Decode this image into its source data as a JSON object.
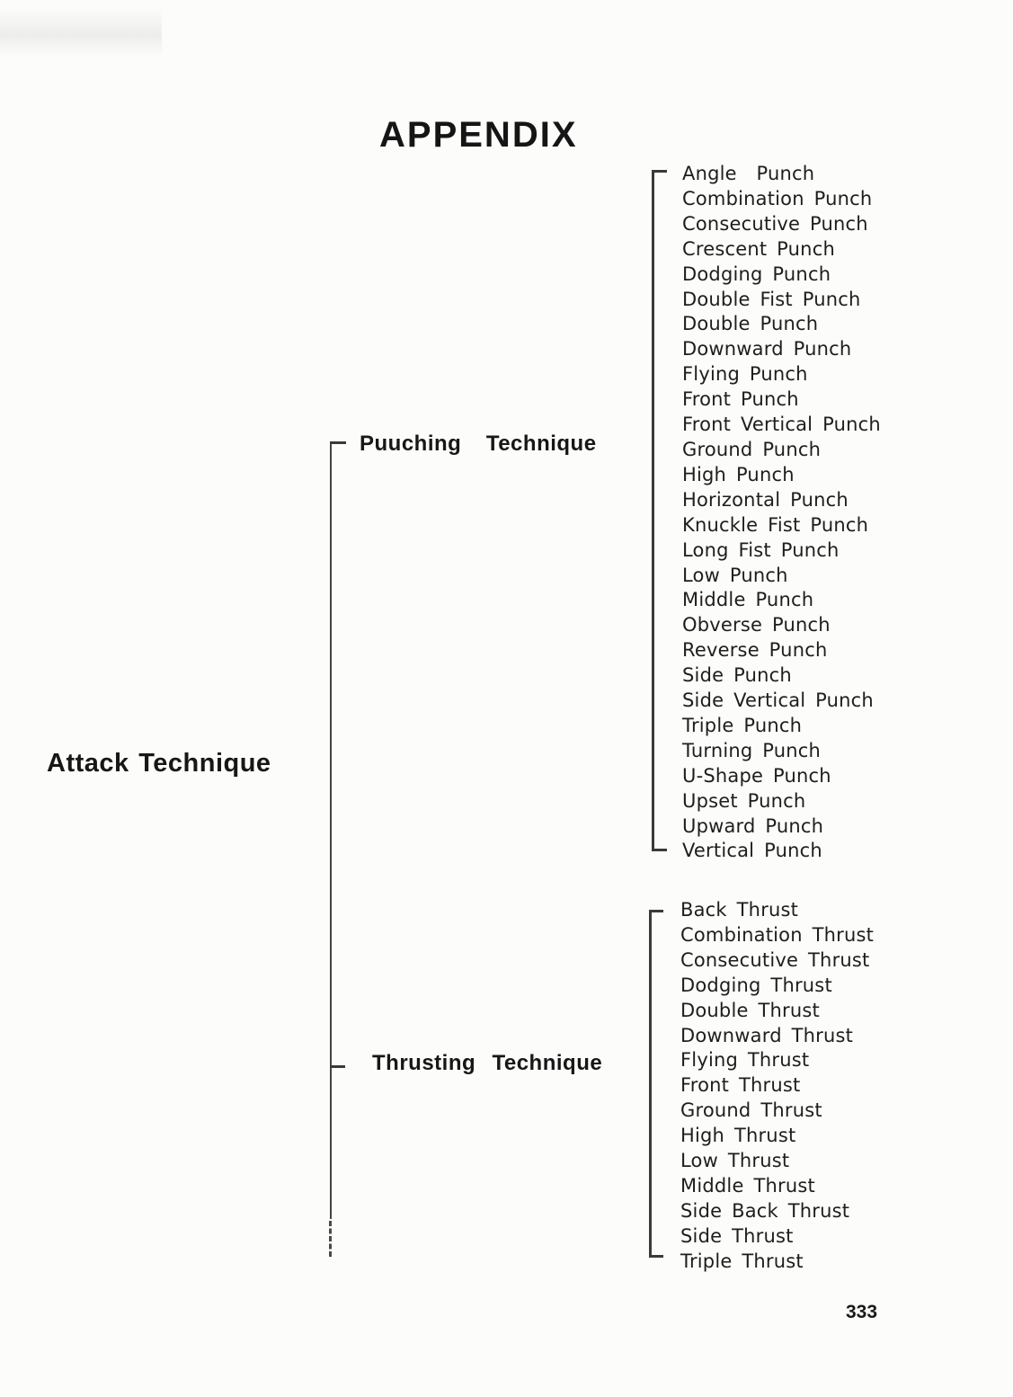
{
  "page": {
    "title": "APPENDIX",
    "page_number": "333"
  },
  "tree": {
    "root": {
      "label": "Attack Technique"
    },
    "branches": [
      {
        "label": "Puuching   Technique",
        "items": [
          "Angle  Punch",
          "Combination Punch",
          "Consecutive Punch",
          "Crescent Punch",
          "Dodging Punch",
          "Double Fist Punch",
          "Double Punch",
          "Downward Punch",
          "Flying Punch",
          "Front Punch",
          "Front Vertical Punch",
          "Ground Punch",
          "High Punch",
          "Horizontal Punch",
          "Knuckle Fist Punch",
          "Long Fist Punch",
          "Low Punch",
          "Middle Punch",
          "Obverse Punch",
          "Reverse Punch",
          "Side Punch",
          "Side Vertical Punch",
          "Triple Punch",
          "Turning Punch",
          "U-Shape Punch",
          "Upset Punch",
          "Upward Punch",
          "Vertical Punch"
        ]
      },
      {
        "label": "Thrusting  Technique",
        "items": [
          "Back Thrust",
          "Combination Thrust",
          "Consecutive Thrust",
          "Dodging Thrust",
          "Double Thrust",
          "Downward Thrust",
          "Flying Thrust",
          "Front Thrust",
          "Ground Thrust",
          "High Thrust",
          "Low Thrust",
          "Middle Thrust",
          "Side Back Thrust",
          "Side Thrust",
          "Triple Thrust"
        ]
      }
    ]
  },
  "colors": {
    "paper": "#fcfcfa",
    "ink": "#1c1c1c",
    "line": "#3a3a3a"
  }
}
